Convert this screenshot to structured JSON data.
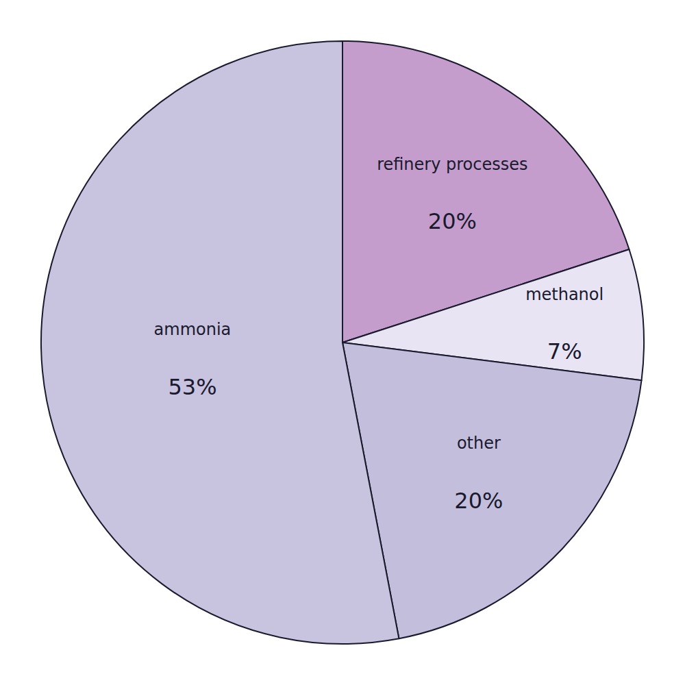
{
  "chart_data": {
    "type": "pie",
    "categories": [
      "refinery processes",
      "methanol",
      "other",
      "ammonia"
    ],
    "values": [
      20,
      7,
      20,
      53
    ],
    "value_labels": [
      "20%",
      "7%",
      "20%",
      "53%"
    ],
    "colors": [
      "#c49dcc",
      "#e8e4f4",
      "#c4bedd",
      "#c8c3df"
    ],
    "data_labels": true
  }
}
